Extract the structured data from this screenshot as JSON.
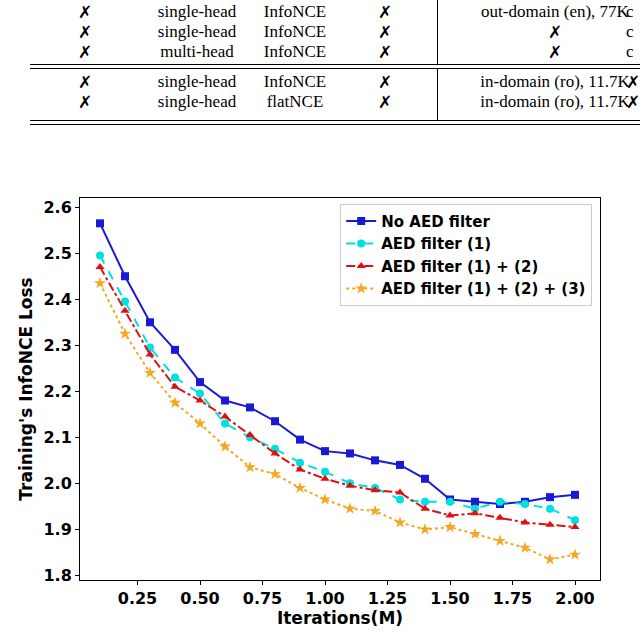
{
  "table": {
    "rows": [
      [
        "✗",
        "single-head",
        "InfoNCE",
        "✗",
        "out-domain (en), 77K",
        "c"
      ],
      [
        "✗",
        "single-head",
        "InfoNCE",
        "✗",
        "✗",
        "c"
      ],
      [
        "✗",
        "multi-head",
        "InfoNCE",
        "✗",
        "✗",
        "c"
      ],
      [
        "✗",
        "single-head",
        "InfoNCE",
        "✗",
        "in-domain (ro), 11.7K",
        "✗"
      ],
      [
        "✗",
        "single-head",
        "flatNCE",
        "✗",
        "in-domain (ro), 11.7K",
        "✗"
      ]
    ]
  },
  "chart_data": {
    "type": "line",
    "x_label": "Iterations(M)",
    "y_label": "Training's InfoNCE Loss",
    "x": [
      0.1,
      0.2,
      0.3,
      0.4,
      0.5,
      0.6,
      0.7,
      0.8,
      0.9,
      1.0,
      1.1,
      1.2,
      1.3,
      1.4,
      1.5,
      1.6,
      1.7,
      1.8,
      1.9,
      2.0
    ],
    "series": [
      {
        "name": "No AED filter",
        "color": "#1a1ad6",
        "marker": "square",
        "line_style": "solid",
        "values": [
          2.565,
          2.45,
          2.35,
          2.29,
          2.22,
          2.18,
          2.165,
          2.135,
          2.095,
          2.07,
          2.065,
          2.05,
          2.04,
          2.01,
          1.965,
          1.96,
          1.955,
          1.96,
          1.97,
          1.975
        ]
      },
      {
        "name": "AED filter (1)",
        "color": "#00e0e0",
        "marker": "circle",
        "line_style": "dash",
        "values": [
          2.495,
          2.395,
          2.295,
          2.23,
          2.195,
          2.13,
          2.1,
          2.075,
          2.045,
          2.025,
          2.0,
          1.99,
          1.965,
          1.96,
          1.96,
          1.945,
          1.96,
          1.955,
          1.945,
          1.92
        ]
      },
      {
        "name": "AED filter (1) + (2)",
        "color": "#dd1111",
        "marker": "triangle-up",
        "line_style": "dashdot",
        "values": [
          2.47,
          2.375,
          2.28,
          2.21,
          2.18,
          2.145,
          2.105,
          2.065,
          2.03,
          2.01,
          1.995,
          1.985,
          1.98,
          1.945,
          1.93,
          1.935,
          1.925,
          1.915,
          1.91,
          1.905
        ]
      },
      {
        "name": "AED filter (1) + (2) + (3)",
        "color": "#f5a623",
        "marker": "star",
        "line_style": "dot",
        "values": [
          2.435,
          2.325,
          2.24,
          2.175,
          2.13,
          2.08,
          2.035,
          2.02,
          1.99,
          1.965,
          1.945,
          1.94,
          1.915,
          1.9,
          1.905,
          1.89,
          1.875,
          1.86,
          1.835,
          1.845
        ]
      }
    ],
    "xlim": [
      0.02,
      2.1
    ],
    "xticks": [
      0.25,
      {
        "value": 0.5,
        "label": "0.50"
      },
      0.75,
      {
        "value": 1.0,
        "label": "1.00"
      },
      1.25,
      {
        "value": 1.5,
        "label": "1.50"
      },
      1.75,
      {
        "value": 2.0,
        "label": "2.00"
      }
    ],
    "ylim": [
      1.79,
      2.62
    ],
    "yticks": [
      1.8,
      1.9,
      {
        "value": 2.0,
        "label": "2.0"
      },
      2.1,
      2.2,
      2.3,
      2.4,
      2.5,
      2.6
    ],
    "grid": false,
    "legend": "upper right"
  }
}
